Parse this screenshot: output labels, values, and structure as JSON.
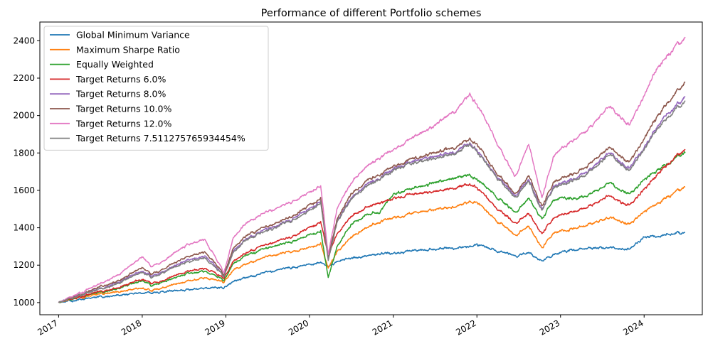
{
  "chart_data": {
    "type": "line",
    "title": "Performance of different Portfolio schemes",
    "xlabel": "",
    "ylabel": "",
    "xlim": [
      "2016-10-11",
      "2024-09-11"
    ],
    "ylim": [
      935,
      2500
    ],
    "grid": false,
    "legend_placement": "upper left",
    "x_ticks": [
      "2017",
      "2018",
      "2019",
      "2020",
      "2021",
      "2022",
      "2023",
      "2024"
    ],
    "y_ticks": [
      1000,
      1200,
      1400,
      1600,
      1800,
      2000,
      2200,
      2400
    ],
    "x": [
      "2017-01-01",
      "2017-04-01",
      "2017-07-01",
      "2017-10-01",
      "2018-01-01",
      "2018-02-08",
      "2018-04-01",
      "2018-07-01",
      "2018-10-01",
      "2018-12-24",
      "2019-02-01",
      "2019-04-01",
      "2019-07-01",
      "2019-10-01",
      "2020-01-01",
      "2020-02-19",
      "2020-03-23",
      "2020-05-01",
      "2020-07-01",
      "2020-09-01",
      "2020-11-01",
      "2021-01-01",
      "2021-04-01",
      "2021-07-01",
      "2021-10-01",
      "2021-12-01",
      "2022-01-01",
      "2022-03-01",
      "2022-06-15",
      "2022-08-15",
      "2022-10-12",
      "2022-12-01",
      "2023-02-01",
      "2023-05-01",
      "2023-07-31",
      "2023-10-27",
      "2023-12-31",
      "2024-03-01",
      "2024-06-28"
    ],
    "series": [
      {
        "name": "Global Minimum Variance",
        "color": "#1f77b4",
        "values": [
          1000,
          1015,
          1030,
          1042,
          1055,
          1050,
          1058,
          1068,
          1078,
          1082,
          1110,
          1135,
          1160,
          1185,
          1205,
          1218,
          1190,
          1220,
          1238,
          1250,
          1258,
          1268,
          1275,
          1285,
          1295,
          1300,
          1305,
          1290,
          1250,
          1270,
          1225,
          1255,
          1280,
          1290,
          1295,
          1285,
          1345,
          1355,
          1375
        ]
      },
      {
        "name": "Maximum Sharpe Ratio",
        "color": "#ff7f0e",
        "values": [
          1000,
          1025,
          1045,
          1060,
          1080,
          1060,
          1080,
          1110,
          1135,
          1110,
          1170,
          1210,
          1245,
          1270,
          1295,
          1320,
          1180,
          1270,
          1350,
          1400,
          1430,
          1455,
          1475,
          1495,
          1515,
          1535,
          1530,
          1470,
          1360,
          1410,
          1295,
          1370,
          1390,
          1415,
          1455,
          1420,
          1480,
          1530,
          1620
        ]
      },
      {
        "name": "Equally Weighted",
        "color": "#2ca02c",
        "values": [
          1000,
          1028,
          1055,
          1080,
          1120,
          1090,
          1110,
          1150,
          1170,
          1120,
          1200,
          1255,
          1290,
          1320,
          1360,
          1390,
          1130,
          1300,
          1420,
          1470,
          1480,
          1580,
          1610,
          1640,
          1670,
          1680,
          1650,
          1600,
          1480,
          1560,
          1450,
          1550,
          1560,
          1570,
          1640,
          1580,
          1650,
          1710,
          1800
        ]
      },
      {
        "name": "Target Returns 6.0%",
        "color": "#d62728",
        "values": [
          1000,
          1030,
          1058,
          1085,
          1130,
          1100,
          1120,
          1160,
          1185,
          1130,
          1215,
          1270,
          1310,
          1345,
          1400,
          1440,
          1250,
          1370,
          1460,
          1510,
          1530,
          1560,
          1575,
          1595,
          1615,
          1630,
          1610,
          1540,
          1420,
          1480,
          1370,
          1450,
          1480,
          1510,
          1570,
          1520,
          1600,
          1690,
          1820
        ]
      },
      {
        "name": "Target Returns 8.0%",
        "color": "#9467bd",
        "values": [
          1000,
          1038,
          1075,
          1115,
          1175,
          1140,
          1165,
          1220,
          1250,
          1145,
          1270,
          1345,
          1390,
          1435,
          1500,
          1550,
          1230,
          1440,
          1560,
          1630,
          1660,
          1720,
          1750,
          1780,
          1810,
          1850,
          1810,
          1720,
          1570,
          1660,
          1500,
          1620,
          1650,
          1700,
          1800,
          1720,
          1820,
          1950,
          2100
        ]
      },
      {
        "name": "Target Returns 10.0%",
        "color": "#8c564b",
        "values": [
          1000,
          1040,
          1082,
          1125,
          1190,
          1150,
          1178,
          1240,
          1275,
          1150,
          1285,
          1360,
          1405,
          1450,
          1520,
          1565,
          1240,
          1450,
          1580,
          1650,
          1680,
          1730,
          1765,
          1800,
          1835,
          1870,
          1840,
          1740,
          1580,
          1680,
          1515,
          1640,
          1680,
          1730,
          1830,
          1750,
          1870,
          2000,
          2180
        ]
      },
      {
        "name": "Target Returns 12.0%",
        "color": "#e377c2",
        "values": [
          1000,
          1050,
          1100,
          1160,
          1250,
          1190,
          1220,
          1300,
          1340,
          1160,
          1340,
          1430,
          1480,
          1530,
          1590,
          1630,
          1250,
          1510,
          1640,
          1730,
          1770,
          1820,
          1880,
          1950,
          2030,
          2110,
          2050,
          1930,
          1670,
          1850,
          1560,
          1780,
          1850,
          1920,
          2050,
          1950,
          2100,
          2260,
          2420
        ]
      },
      {
        "name": "Target Returns 7.511275765934454%",
        "color": "#7f7f7f",
        "values": [
          1000,
          1036,
          1072,
          1110,
          1168,
          1132,
          1158,
          1212,
          1242,
          1140,
          1262,
          1338,
          1382,
          1428,
          1490,
          1540,
          1225,
          1432,
          1555,
          1620,
          1652,
          1712,
          1742,
          1772,
          1802,
          1840,
          1802,
          1712,
          1562,
          1652,
          1492,
          1612,
          1642,
          1692,
          1790,
          1710,
          1810,
          1935,
          2080
        ]
      }
    ]
  }
}
